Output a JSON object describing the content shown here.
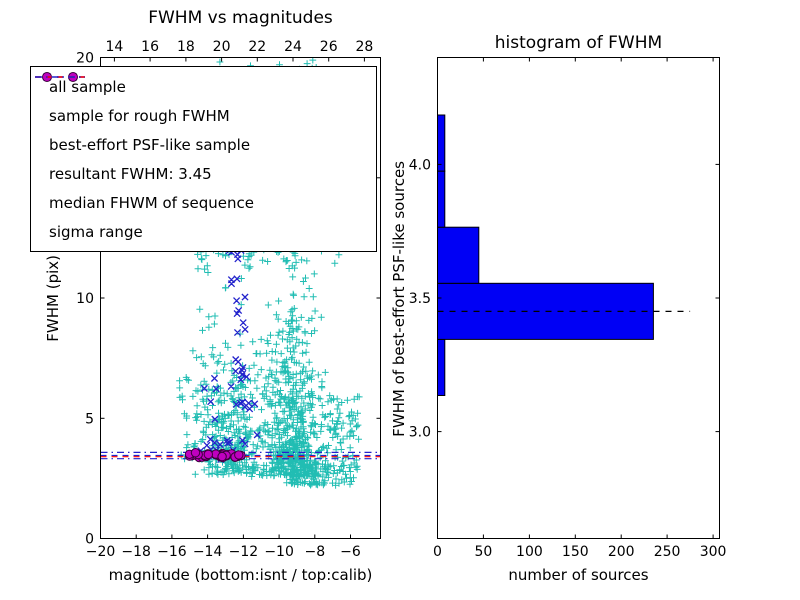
{
  "chart_data": [
    {
      "type": "scatter",
      "title": "FWHM vs magnitudes",
      "xlabel": "magnitude (bottom:isnt / top:calib)",
      "ylabel": "FWHM (pix)",
      "xlim": [
        -20,
        -4.32
      ],
      "ylim": [
        0,
        20
      ],
      "x_top_lim": [
        13.22,
        28.9
      ],
      "x_ticks_bottom": [
        -20,
        -18,
        -16,
        -14,
        -12,
        -10,
        -8,
        -6
      ],
      "x_ticks_top": [
        14,
        16,
        18,
        20,
        22,
        24,
        26,
        28
      ],
      "y_ticks": [
        0,
        5,
        10,
        15,
        20
      ],
      "grid": false,
      "legend_position": "upper left",
      "series": [
        {
          "name": "all sample",
          "marker": "plus",
          "color": "#21bdb3",
          "clusters": [
            {
              "n": 620,
              "x": {
                "d": "n",
                "mu": -9.2,
                "sd": 0.85,
                "min": -11.6,
                "max": -6.1
              },
              "y": {
                "d": "e",
                "lo": 2.55,
                "mean": 2.6,
                "max": 19.5
              }
            },
            {
              "n": 300,
              "x": {
                "d": "n",
                "mu": -12.7,
                "sd": 1.15,
                "min": -15.9,
                "max": -10.2
              },
              "y": {
                "d": "e",
                "lo": 2.65,
                "mean": 2.1,
                "max": 13
              }
            },
            {
              "n": 230,
              "x": {
                "d": "u",
                "lo": -14.6,
                "hi": -6.0
              },
              "y": {
                "d": "u",
                "lo": 11,
                "hi": 19.9
              }
            },
            {
              "n": 110,
              "x": {
                "d": "n",
                "mu": -8.2,
                "sd": 0.9,
                "min": -10.5,
                "max": -5.8
              },
              "y": {
                "d": "u",
                "lo": 2.2,
                "hi": 3.1
              }
            },
            {
              "n": 90,
              "x": {
                "d": "u",
                "lo": -15.6,
                "hi": -11.6
              },
              "y": {
                "d": "u",
                "lo": 3.1,
                "hi": 6.8
              }
            },
            {
              "n": 70,
              "x": {
                "d": "u",
                "lo": -7.3,
                "hi": -5.5
              },
              "y": {
                "d": "u",
                "lo": 2.5,
                "hi": 6.0
              }
            }
          ]
        },
        {
          "name": "sample for rough FWHM",
          "marker": "x",
          "color": "#2323cc",
          "clusters": [
            {
              "n": 24,
              "x": {
                "d": "n",
                "mu": -12.35,
                "sd": 0.28,
                "min": -13.0,
                "max": -11.7
              },
              "y": {
                "d": "u",
                "lo": 6.3,
                "hi": 12.3
              }
            },
            {
              "n": 18,
              "x": {
                "d": "n",
                "mu": -13.2,
                "sd": 0.75,
                "min": -14.7,
                "max": -11.8
              },
              "y": {
                "d": "n",
                "mu": 4.9,
                "sd": 0.85,
                "min": 3.7,
                "max": 6.9
              }
            },
            {
              "n": 14,
              "x": {
                "d": "u",
                "lo": -14.4,
                "hi": -12.0
              },
              "y": {
                "d": "n",
                "mu": 3.55,
                "sd": 0.12
              }
            },
            {
              "n": 6,
              "x": {
                "d": "n",
                "mu": -11.6,
                "sd": 0.25
              },
              "y": {
                "d": "n",
                "mu": 5.5,
                "sd": 1.1
              }
            }
          ]
        },
        {
          "name": "best-effort PSF-like sample",
          "marker": "circle",
          "color": "#bf00bf",
          "edge": "#3a003a",
          "clusters": [
            {
              "n": 34,
              "x": {
                "d": "u",
                "lo": -15.05,
                "hi": -12.1
              },
              "y": {
                "d": "n",
                "mu": 3.46,
                "sd": 0.055
              }
            }
          ]
        }
      ],
      "lines": [
        {
          "name": "resultant-fwhm-line",
          "y": 3.45,
          "color": "#2323cc",
          "dash": "dashed"
        },
        {
          "name": "median-fwhm-line",
          "y": 3.4,
          "color": "#ff0000",
          "dash": "dashed"
        },
        {
          "name": "sigma-range-upper-line",
          "y": 3.58,
          "color": "#2323cc",
          "dash": "dashdot"
        },
        {
          "name": "sigma-range-lower-line",
          "y": 3.32,
          "color": "#2323cc",
          "dash": "dashdot"
        }
      ],
      "legend": {
        "entries": [
          {
            "label": "all sample",
            "kind": "scatter",
            "marker": "plus",
            "color": "#21bdb3"
          },
          {
            "label": "sample for rough FWHM",
            "kind": "scatter",
            "marker": "x",
            "color": "#2323cc"
          },
          {
            "label": "best-effort PSF-like sample",
            "kind": "scatter",
            "marker": "circle",
            "color": "#bf00bf",
            "edge": "#3a003a"
          },
          {
            "label": "resultant FWHM: 3.45",
            "kind": "line",
            "dash": "dashed",
            "color": "#2323cc"
          },
          {
            "label": "median FHWM of sequence",
            "kind": "line",
            "dash": "dashed",
            "color": "#ff0000"
          },
          {
            "label": "sigma range",
            "kind": "line",
            "dash": "dashdot",
            "color": "#2323cc"
          }
        ]
      }
    },
    {
      "type": "bar",
      "orientation": "horizontal",
      "title": "histogram of FWHM",
      "xlabel": "number of sources",
      "ylabel": "FWHM of best-effort PSF-like sources",
      "xlim": [
        0,
        307
      ],
      "ylim": [
        2.6,
        4.4
      ],
      "x_ticks": [
        0,
        50,
        100,
        150,
        200,
        250,
        300
      ],
      "y_ticks": [
        "3.0",
        "3.5",
        "4.0"
      ],
      "bar_color": "#0000f5",
      "bar_edge_color": "#000000",
      "bins": [
        {
          "fwhm_lo": 3.135,
          "fwhm_hi": 3.345,
          "count": 8
        },
        {
          "fwhm_lo": 3.345,
          "fwhm_hi": 3.555,
          "count": 235
        },
        {
          "fwhm_lo": 3.555,
          "fwhm_hi": 3.765,
          "count": 45
        },
        {
          "fwhm_lo": 3.765,
          "fwhm_hi": 3.975,
          "count": 8
        },
        {
          "fwhm_lo": 3.975,
          "fwhm_hi": 4.185,
          "count": 8
        }
      ],
      "median_line": {
        "y": 3.45,
        "x_end": 275,
        "color": "#000000",
        "dash": "dashed"
      }
    }
  ]
}
